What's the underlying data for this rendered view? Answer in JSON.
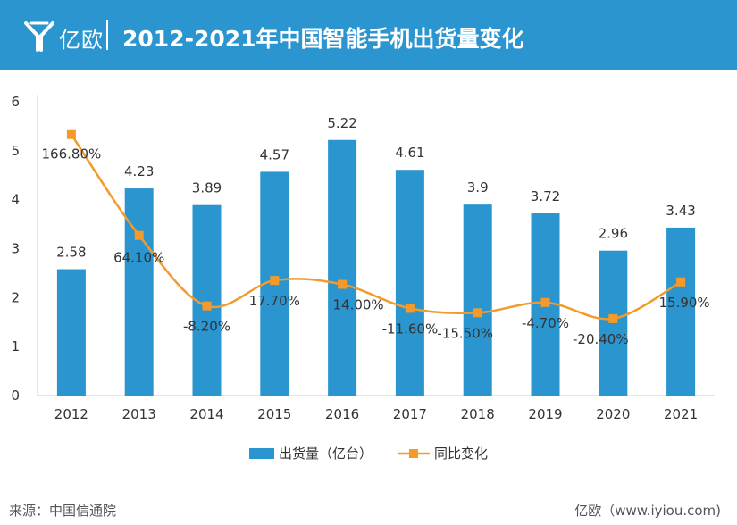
{
  "header": {
    "logo_text": "亿欧",
    "title": "2012-2021年中国智能手机出货量变化"
  },
  "chart_data": {
    "type": "bar",
    "categories": [
      "2012",
      "2013",
      "2014",
      "2015",
      "2016",
      "2017",
      "2018",
      "2019",
      "2020",
      "2021"
    ],
    "series": [
      {
        "name": "出货量（亿台）",
        "type": "bar",
        "values": [
          2.58,
          4.23,
          3.89,
          4.57,
          5.22,
          4.61,
          3.9,
          3.72,
          2.96,
          3.43
        ],
        "labels": [
          "2.58",
          "4.23",
          "3.89",
          "4.57",
          "5.22",
          "4.61",
          "3.9",
          "3.72",
          "2.96",
          "3.43"
        ]
      },
      {
        "name": "同比变化",
        "type": "line",
        "values": [
          166.8,
          64.1,
          -8.2,
          17.7,
          14.0,
          -11.6,
          -15.5,
          -4.7,
          -20.4,
          15.9
        ],
        "labels": [
          "166.80%",
          "64.10%",
          "-8.20%",
          "17.70%",
          "14.00%",
          "-11.60%",
          "-15.50%",
          "-4.70%",
          "-20.40%",
          "15.90%"
        ],
        "plot_y": [
          5.33,
          3.27,
          1.83,
          2.35,
          2.27,
          1.78,
          1.69,
          1.9,
          1.57,
          2.32
        ]
      }
    ],
    "y_axis": {
      "min": 0,
      "max": 6,
      "ticks": [
        "0",
        "1",
        "2",
        "3",
        "4",
        "5",
        "6"
      ]
    },
    "legend_position": "bottom",
    "colors": {
      "bar": "#2b95cf",
      "line": "#f39a2b",
      "axis": "#cccccc",
      "text": "#333333"
    }
  },
  "footer": {
    "source": "来源：中国信通院",
    "credit": "亿欧（www.iyiou.com)"
  }
}
